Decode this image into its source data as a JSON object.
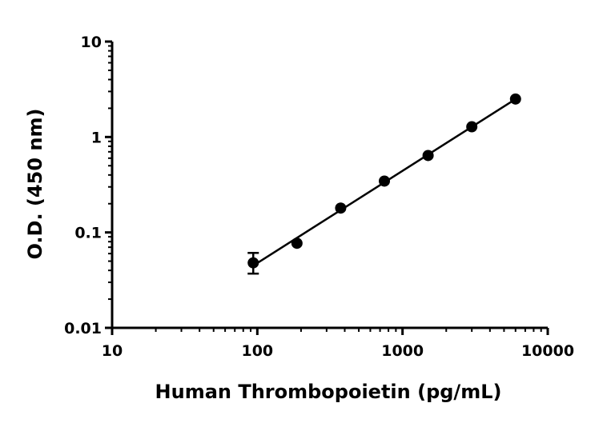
{
  "chart_data": {
    "type": "scatter",
    "title": "",
    "xlabel": "Human Thrombopoietin (pg/mL)",
    "ylabel": "O.D. (450 nm)",
    "xscale": "log",
    "yscale": "log",
    "xlim": [
      10,
      10000
    ],
    "ylim": [
      0.01,
      10
    ],
    "grid": false,
    "legend": "none",
    "x_ticks": [
      {
        "value": 10,
        "label": "10"
      },
      {
        "value": 100,
        "label": "100"
      },
      {
        "value": 1000,
        "label": "1000"
      },
      {
        "value": 10000,
        "label": "10000"
      }
    ],
    "y_ticks": [
      {
        "value": 0.01,
        "label": "0.01"
      },
      {
        "value": 0.1,
        "label": "0.1"
      },
      {
        "value": 1,
        "label": "1"
      },
      {
        "value": 10,
        "label": "10"
      }
    ],
    "series": [
      {
        "x": [
          93.75,
          187.5,
          375,
          750,
          1500,
          3000,
          6000
        ],
        "y": [
          0.048,
          0.077,
          0.18,
          0.345,
          0.64,
          1.28,
          2.5
        ],
        "error_low": [
          0.037,
          null,
          null,
          null,
          null,
          null,
          null
        ],
        "error_high": [
          0.061,
          null,
          null,
          null,
          null,
          null,
          null
        ],
        "color": "#000000",
        "marker": "circle",
        "fit_line": true
      }
    ]
  }
}
